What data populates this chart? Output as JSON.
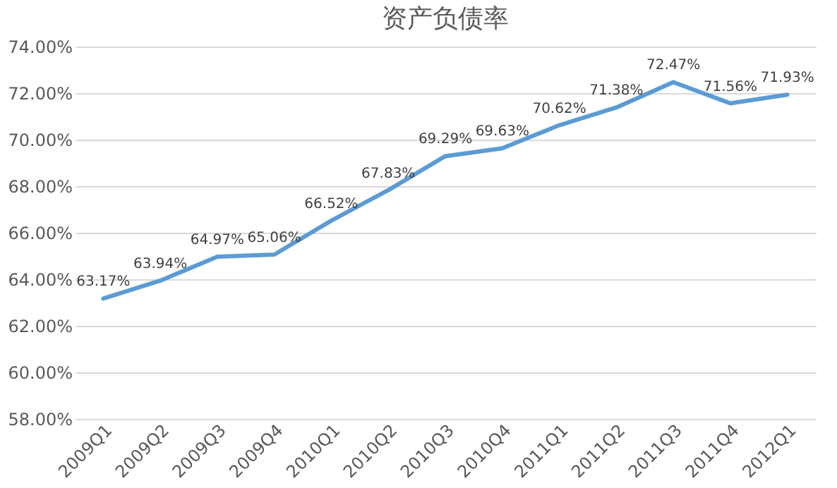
{
  "chart_data": {
    "type": "line",
    "title": "资产负债率",
    "categories": [
      "2009Q1",
      "2009Q2",
      "2009Q3",
      "2009Q4",
      "2010Q1",
      "2010Q2",
      "2010Q3",
      "2010Q4",
      "2011Q1",
      "2011Q2",
      "2011Q3",
      "2011Q4",
      "2012Q1"
    ],
    "series": [
      {
        "color": "#5b9bd5",
        "values": [
          63.17,
          63.94,
          64.97,
          65.06,
          66.52,
          67.83,
          69.29,
          69.63,
          70.62,
          71.38,
          72.47,
          71.56,
          71.93
        ],
        "value_labels": [
          "63.17%",
          "63.94%",
          "64.97%",
          "65.06%",
          "66.52%",
          "67.83%",
          "69.29%",
          "69.63%",
          "70.62%",
          "71.38%",
          "72.47%",
          "71.56%",
          "71.93%"
        ]
      }
    ],
    "ylim": [
      58,
      74
    ],
    "yticks": [
      {
        "value": 58,
        "label": "58.00%"
      },
      {
        "value": 60,
        "label": "60.00%"
      },
      {
        "value": 62,
        "label": "62.00%"
      },
      {
        "value": 64,
        "label": "64.00%"
      },
      {
        "value": 66,
        "label": "66.00%"
      },
      {
        "value": 68,
        "label": "68.00%"
      },
      {
        "value": 70,
        "label": "70.00%"
      },
      {
        "value": 72,
        "label": "72.00%"
      },
      {
        "value": 74,
        "label": "74.00%"
      }
    ],
    "grid": "y",
    "marker": "none",
    "line_style": "solid"
  }
}
